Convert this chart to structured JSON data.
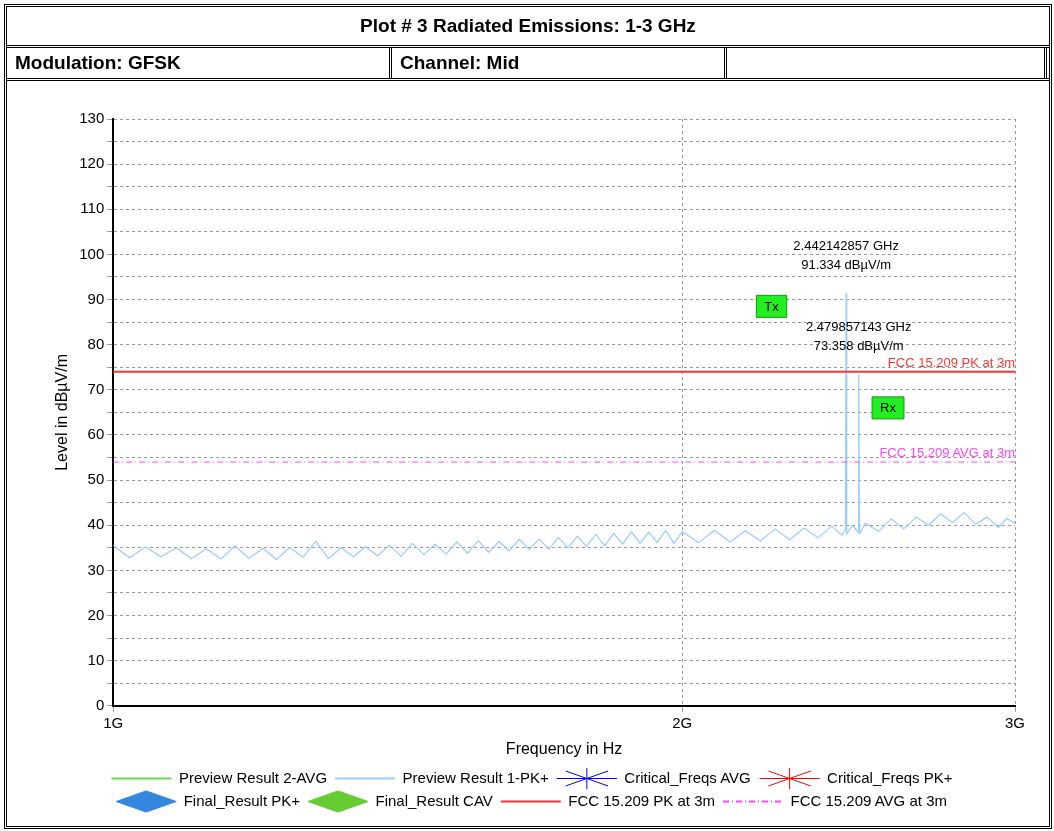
{
  "chart_data": {
    "type": "line",
    "title": "Plot # 3 Radiated Emissions: 1-3 GHz",
    "xlabel": "Frequency in Hz",
    "ylabel": "Level in dBµV/m",
    "log": "x",
    "grid": true,
    "legend": "bottom",
    "xlim": [
      1,
      3
    ],
    "xticks": [
      {
        "value": 1,
        "label": "1G"
      },
      {
        "value": 2,
        "label": "2G"
      },
      {
        "value": 3,
        "label": "3G"
      }
    ],
    "ylim": [
      0,
      130
    ],
    "yticks": [
      0,
      {
        "value": 5,
        "label": null
      },
      10,
      {
        "value": 15,
        "label": null
      },
      20,
      {
        "value": 25,
        "label": null
      },
      30,
      {
        "value": 35,
        "label": null
      },
      40,
      {
        "value": 45,
        "label": null
      },
      50,
      {
        "value": 55,
        "label": null
      },
      60,
      {
        "value": 65,
        "label": null
      },
      70,
      {
        "value": 75,
        "label": null
      },
      80,
      {
        "value": 85,
        "label": null
      },
      90,
      {
        "value": 95,
        "label": null
      },
      100,
      {
        "value": 105,
        "label": null
      },
      110,
      {
        "value": 115,
        "label": null
      },
      120,
      {
        "value": 125,
        "label": null
      },
      130
    ],
    "series": [
      {
        "name": "Preview Result 2-AVG",
        "marker": "none",
        "color": "#66dd44"
      },
      {
        "name": "Preview Result 1-PK+",
        "marker": "none",
        "color": "#99ccff",
        "x": [
          1.0,
          1.02,
          1.04,
          1.06,
          1.08,
          1.1,
          1.12,
          1.14,
          1.16,
          1.18,
          1.2,
          1.22,
          1.24,
          1.26,
          1.28,
          1.3,
          1.32,
          1.34,
          1.36,
          1.38,
          1.4,
          1.42,
          1.44,
          1.46,
          1.48,
          1.5,
          1.52,
          1.54,
          1.56,
          1.58,
          1.6,
          1.62,
          1.64,
          1.66,
          1.68,
          1.7,
          1.72,
          1.74,
          1.76,
          1.78,
          1.8,
          1.82,
          1.84,
          1.86,
          1.88,
          1.9,
          1.92,
          1.94,
          1.96,
          1.98,
          2.0,
          2.04,
          2.08,
          2.12,
          2.16,
          2.2,
          2.24,
          2.28,
          2.32,
          2.36,
          2.4,
          2.43,
          2.44,
          2.442142857,
          2.444,
          2.46,
          2.478,
          2.479857143,
          2.482,
          2.5,
          2.54,
          2.58,
          2.62,
          2.66,
          2.7,
          2.74,
          2.78,
          2.82,
          2.86,
          2.9,
          2.94,
          2.97,
          3.0
        ],
        "values": [
          35.5,
          32.8,
          35.2,
          33.0,
          35.0,
          32.6,
          34.8,
          32.5,
          35.4,
          32.7,
          34.9,
          32.4,
          35.1,
          32.9,
          36.5,
          32.6,
          35.0,
          33.0,
          35.3,
          33.2,
          35.6,
          33.1,
          36.0,
          33.5,
          35.8,
          33.6,
          36.3,
          33.8,
          36.6,
          34.0,
          36.4,
          34.3,
          36.9,
          34.6,
          37.0,
          34.7,
          37.3,
          35.0,
          37.6,
          35.3,
          38.0,
          35.5,
          38.2,
          35.8,
          38.6,
          36.0,
          38.5,
          36.2,
          38.8,
          36.0,
          38.6,
          36.1,
          38.9,
          36.3,
          38.8,
          36.5,
          39.2,
          36.8,
          39.4,
          37.2,
          39.8,
          37.8,
          39.0,
          91.334,
          38.0,
          40.0,
          38.5,
          73.358,
          38.0,
          40.5,
          38.6,
          41.4,
          39.2,
          41.8,
          40.0,
          42.5,
          40.6,
          42.8,
          40.2,
          41.8,
          39.5,
          41.5,
          40.5
        ]
      },
      {
        "name": "Critical_Freqs AVG",
        "type": "scatter",
        "marker": "star",
        "color": "#0000ff"
      },
      {
        "name": "Critical_Freqs PK+",
        "type": "scatter",
        "marker": "star",
        "color": "#ff0000"
      },
      {
        "name": "Final_Result PK+",
        "type": "scatter",
        "marker": "diamond",
        "color": "#3388dd"
      },
      {
        "name": "Final_Result CAV",
        "type": "scatter",
        "marker": "diamond",
        "color": "#66cc33"
      }
    ],
    "ref_lines": [
      {
        "axis": "y",
        "value": 74,
        "label": "FCC 15.209 PK at 3m",
        "color": "#ff3333",
        "line_style": "solid"
      },
      {
        "axis": "y",
        "value": 54,
        "label": "FCC 15.209 AVG at 3m",
        "color": "#ff44ff",
        "line_style": "dashed"
      }
    ],
    "annotations": [
      "Modulation: GFSK",
      "Channel: Mid",
      {
        "text": "2.442142857 GHz\n91.334 dBµV/m",
        "x": 2.442142857,
        "y": 91.334
      },
      {
        "text": "2.479857143 GHz\n73.358 dBµV/m",
        "x": 2.479857143,
        "y": 73.358
      },
      {
        "text": "Tx",
        "x": 2.23,
        "y": 88.5
      },
      {
        "text": "Rx",
        "x": 2.57,
        "y": 66
      }
    ]
  }
}
